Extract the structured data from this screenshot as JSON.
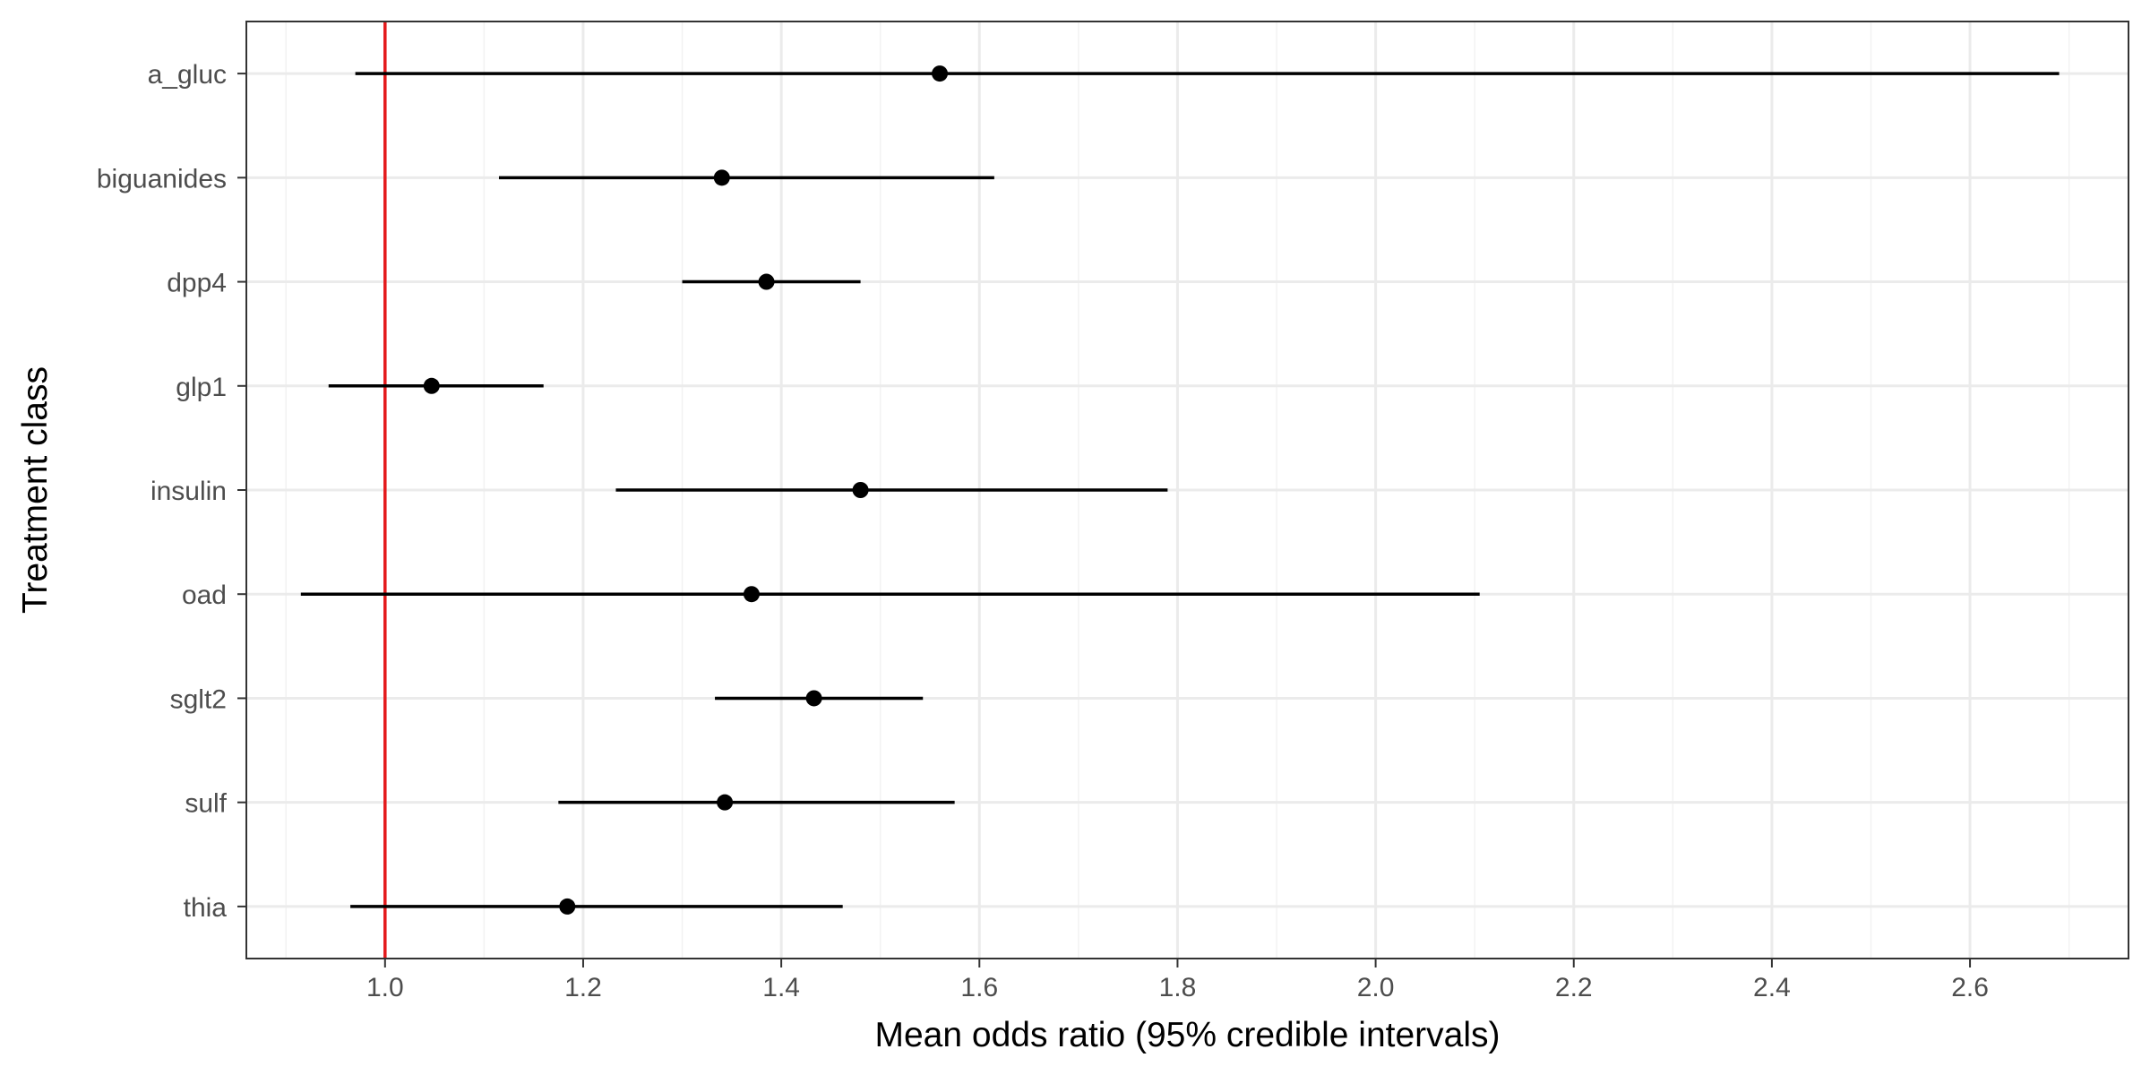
{
  "chart_data": {
    "type": "forest",
    "title": "",
    "xlabel": "Mean odds ratio (95% credible intervals)",
    "ylabel": "Treatment class",
    "xlim": [
      0.86,
      2.76
    ],
    "x_ticks": [
      1.0,
      1.2,
      1.4,
      1.6,
      1.8,
      2.0,
      2.2,
      2.4,
      2.6
    ],
    "x_tick_labels": [
      "1.0",
      "1.2",
      "1.4",
      "1.6",
      "1.8",
      "2.0",
      "2.2",
      "2.4",
      "2.6"
    ],
    "reference_line": 1.0,
    "reference_color": "#e41a1c",
    "grid": true,
    "categories": [
      "a_gluc",
      "biguanides",
      "dpp4",
      "glp1",
      "insulin",
      "oad",
      "sglt2",
      "sulf",
      "thia"
    ],
    "estimates": [
      {
        "category": "a_gluc",
        "mean": 1.56,
        "lower": 0.97,
        "upper": 2.69
      },
      {
        "category": "biguanides",
        "mean": 1.34,
        "lower": 1.115,
        "upper": 1.615
      },
      {
        "category": "dpp4",
        "mean": 1.385,
        "lower": 1.3,
        "upper": 1.48
      },
      {
        "category": "glp1",
        "mean": 1.047,
        "lower": 0.943,
        "upper": 1.16
      },
      {
        "category": "insulin",
        "mean": 1.48,
        "lower": 1.233,
        "upper": 1.79
      },
      {
        "category": "oad",
        "mean": 1.37,
        "lower": 0.915,
        "upper": 2.105
      },
      {
        "category": "sglt2",
        "mean": 1.433,
        "lower": 1.333,
        "upper": 1.543
      },
      {
        "category": "sulf",
        "mean": 1.343,
        "lower": 1.175,
        "upper": 1.575
      },
      {
        "category": "thia",
        "mean": 1.184,
        "lower": 0.965,
        "upper": 1.462
      }
    ]
  }
}
